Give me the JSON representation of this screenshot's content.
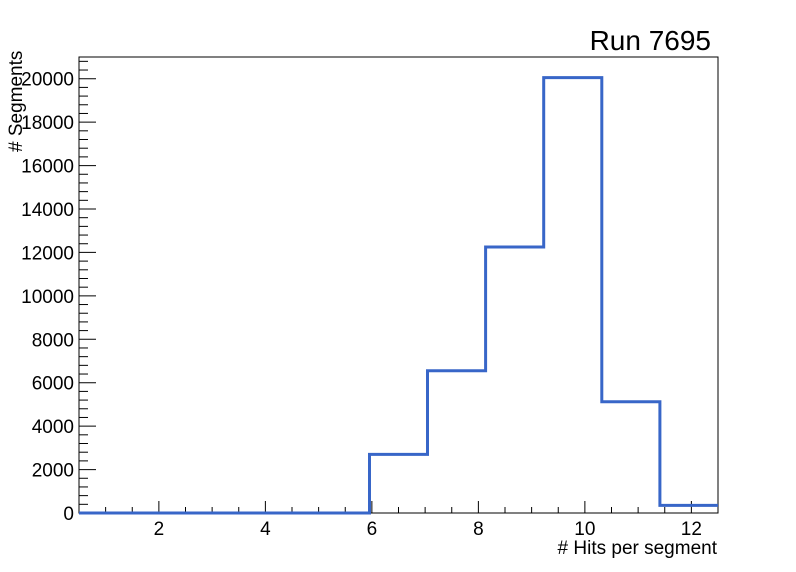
{
  "chart_data": {
    "type": "bar",
    "style": "root-step-histogram",
    "title": "Run 7695",
    "xlabel": "# Hits per segment",
    "ylabel": "# Segments",
    "xlim": [
      0.5,
      12.5
    ],
    "ylim": [
      0,
      21000
    ],
    "x_ticks": [
      2,
      4,
      6,
      8,
      10,
      12
    ],
    "x_minor_step": 0.5,
    "y_ticks": [
      0,
      2000,
      4000,
      6000,
      8000,
      10000,
      12000,
      14000,
      16000,
      18000,
      20000
    ],
    "y_minor_step": 400,
    "bin_edges": [
      0.5,
      1.5909,
      2.6818,
      3.7727,
      4.8636,
      5.9545,
      7.0455,
      8.1364,
      9.2273,
      10.3182,
      11.4091,
      12.5
    ],
    "counts": [
      0,
      0,
      0,
      0,
      0,
      2700,
      6550,
      12250,
      20050,
      5120,
      350
    ],
    "line_color": "#3866c8",
    "line_width": 3,
    "frame_color": "#000000",
    "background_color": "#ffffff",
    "grid": false,
    "legend_position": "none"
  }
}
